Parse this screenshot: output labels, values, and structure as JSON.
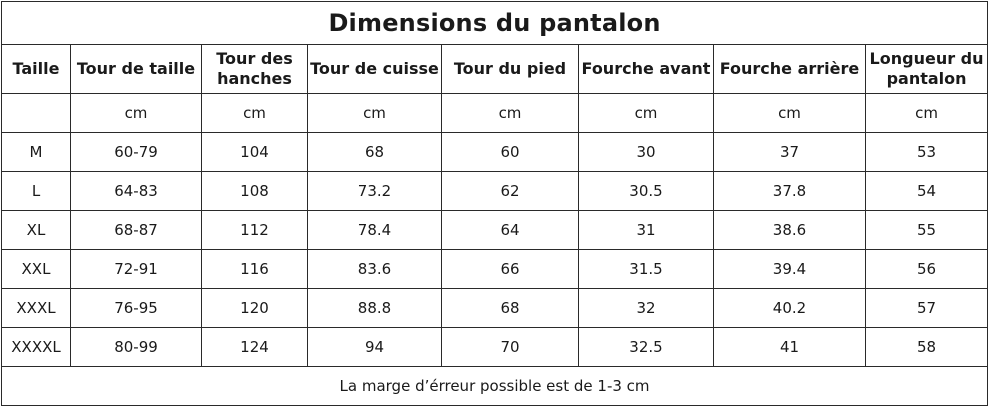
{
  "title": "Dimensions du pantalon",
  "headers": [
    "Taille",
    "Tour de taille",
    "Tour des hanches",
    "Tour de cuisse",
    "Tour du pied",
    "Fourche avant",
    "Fourche arrière",
    "Longueur du pantalon"
  ],
  "units": [
    "",
    "cm",
    "cm",
    "cm",
    "cm",
    "cm",
    "cm",
    "cm"
  ],
  "rows": [
    [
      "M",
      "60-79",
      "104",
      "68",
      "60",
      "30",
      "37",
      "53"
    ],
    [
      "L",
      "64-83",
      "108",
      "73.2",
      "62",
      "30.5",
      "37.8",
      "54"
    ],
    [
      "XL",
      "68-87",
      "112",
      "78.4",
      "64",
      "31",
      "38.6",
      "55"
    ],
    [
      "XXL",
      "72-91",
      "116",
      "83.6",
      "66",
      "31.5",
      "39.4",
      "56"
    ],
    [
      "XXXL",
      "76-95",
      "120",
      "88.8",
      "68",
      "32",
      "40.2",
      "57"
    ],
    [
      "XXXXL",
      "80-99",
      "124",
      "94",
      "70",
      "32.5",
      "41",
      "58"
    ]
  ],
  "footer": "La marge d’érreur possible est de 1-3 cm"
}
